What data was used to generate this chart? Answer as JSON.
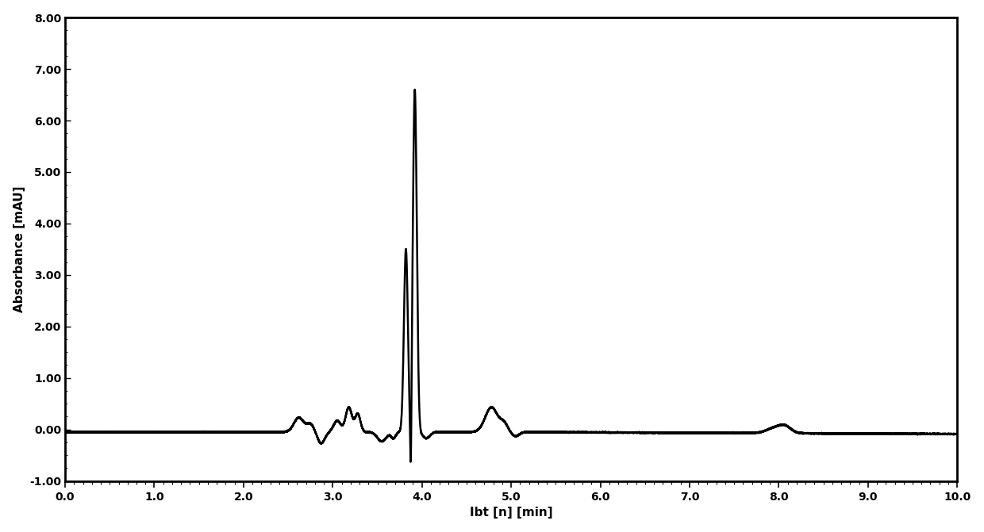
{
  "xlabel": "Ibt [n] [min]",
  "ylabel": "Absorbance [mAU]",
  "xlim": [
    0.0,
    10.0
  ],
  "ylim": [
    -1.0,
    8.0
  ],
  "xticks": [
    0.0,
    1.0,
    2.0,
    3.0,
    4.0,
    5.0,
    6.0,
    7.0,
    8.0,
    9.0,
    10.0
  ],
  "yticks": [
    -1.0,
    0.0,
    1.0,
    2.0,
    3.0,
    4.0,
    5.0,
    6.0,
    7.0,
    8.0
  ],
  "line_color": "#000000",
  "line_width": 1.8,
  "background_color": "#ffffff",
  "plot_bg_color": "#ffffff",
  "xlabel_fontsize": 11,
  "ylabel_fontsize": 11,
  "tick_fontsize": 10
}
